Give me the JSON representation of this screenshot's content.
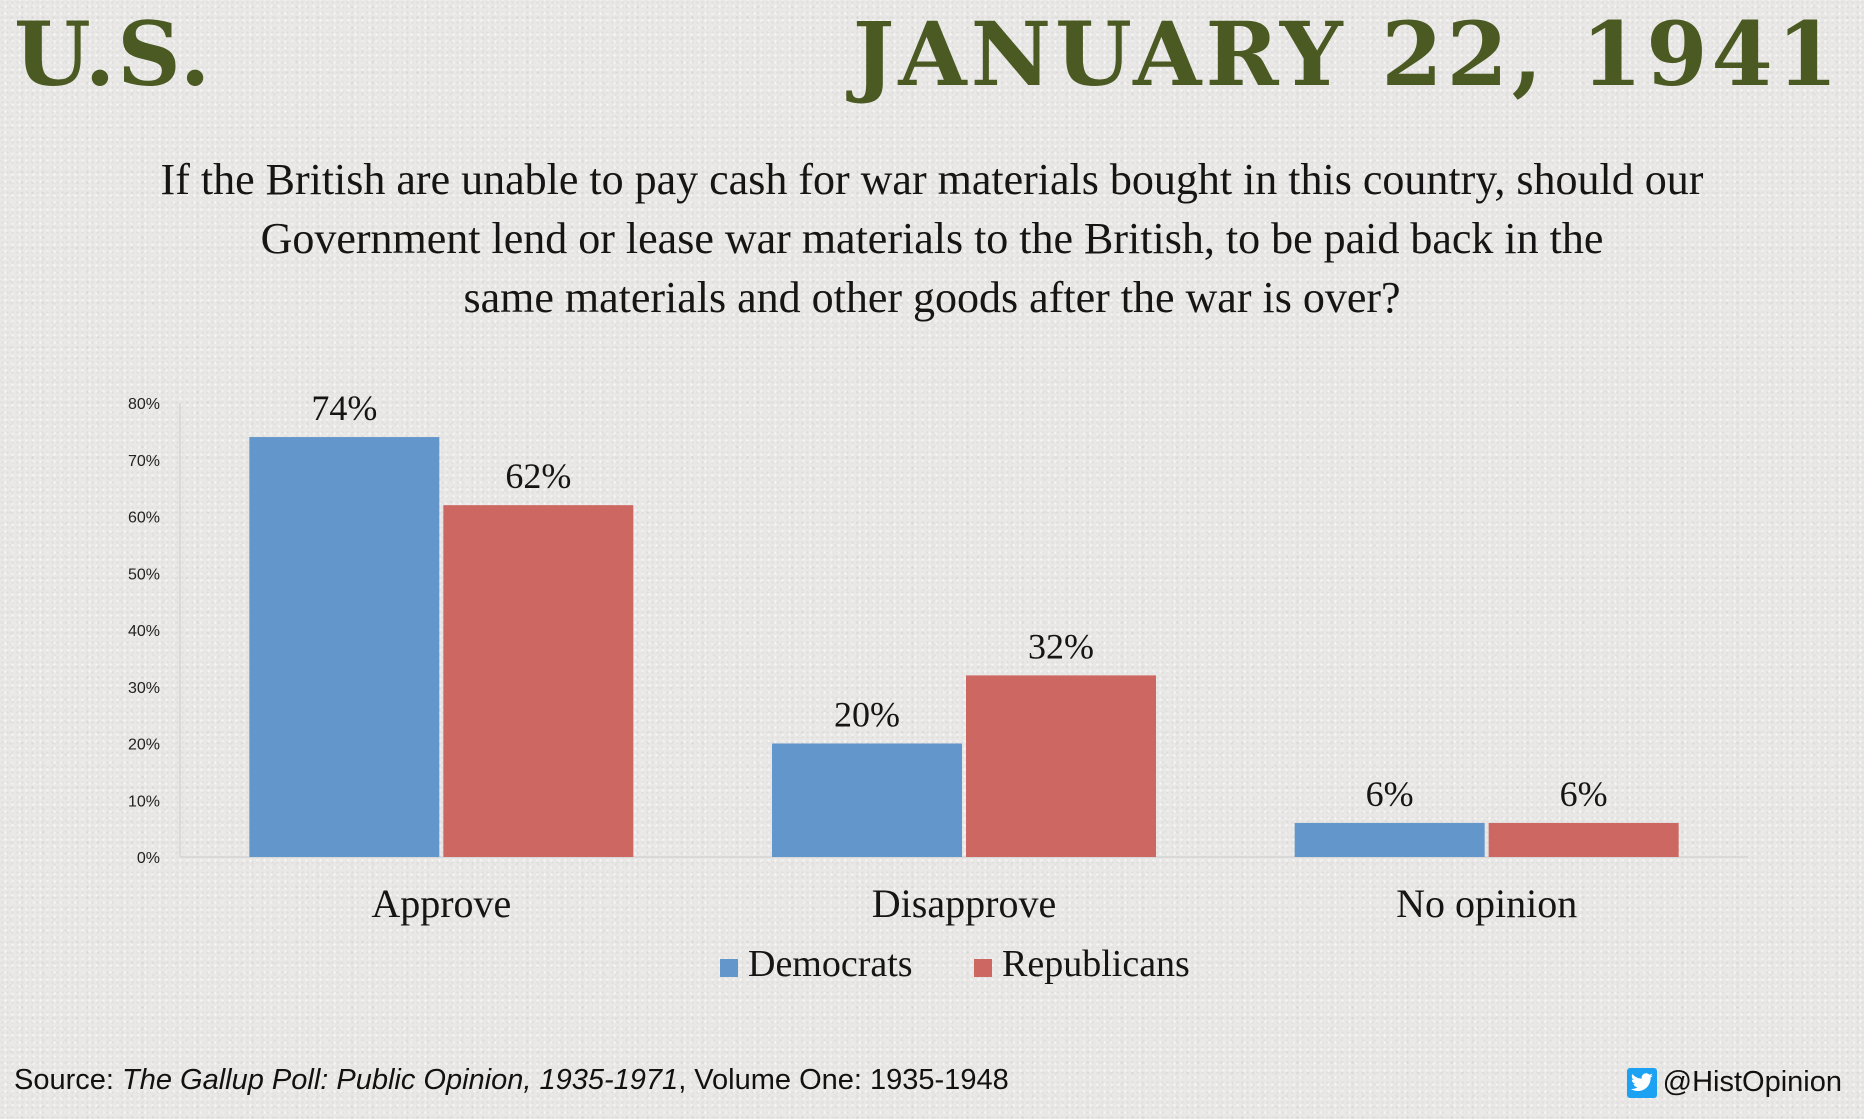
{
  "header": {
    "country": "U.S.",
    "date": "JANUARY 22, 1941"
  },
  "question": {
    "lines": [
      "If the British are unable to pay cash for war materials bought in this country, should our",
      "Government lend or lease war materials to the British, to be paid back in the",
      "same materials and other goods after the war is over?"
    ]
  },
  "chart_data": {
    "type": "bar",
    "title": "",
    "xlabel": "",
    "ylabel": "",
    "categories": [
      "Approve",
      "Disapprove",
      "No opinion"
    ],
    "series": [
      {
        "name": "Democrats",
        "values": [
          74,
          20,
          6
        ],
        "labels": [
          "74%",
          "20%",
          "6%"
        ],
        "color": "#6396ca"
      },
      {
        "name": "Republicans",
        "values": [
          62,
          32,
          6
        ],
        "labels": [
          "62%",
          "32%",
          "6%"
        ],
        "color": "#cd6761"
      }
    ],
    "ylim": [
      0,
      80
    ],
    "yticks": [
      0,
      10,
      20,
      30,
      40,
      50,
      60,
      70,
      80
    ],
    "ytick_labels": [
      "0%",
      "10%",
      "20%",
      "30%",
      "40%",
      "50%",
      "60%",
      "70%",
      "80%"
    ],
    "grid": false,
    "legend": "bottom-center"
  },
  "footer": {
    "source_prefix": "Source: ",
    "source_title": "The Gallup Poll: Public Opinion, 1935-1971",
    "source_suffix": ", Volume One: 1935-1948",
    "handle": "@HistOpinion",
    "handle_icon": "twitter-bird-icon"
  },
  "colors": {
    "header": "#4b5a22",
    "democrats": "#6396ca",
    "republicans": "#cd6761"
  }
}
